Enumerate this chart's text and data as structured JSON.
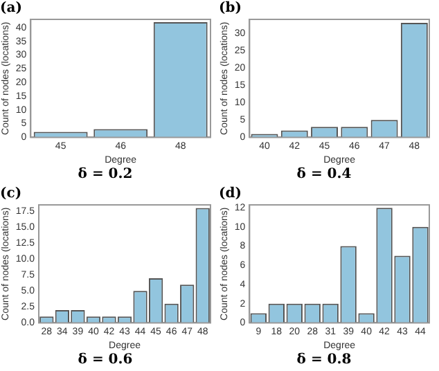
{
  "chart_data": [
    {
      "type": "bar",
      "title": "(a)",
      "subtitle": "δ = 0.2",
      "xlabel": "Degree",
      "ylabel": "Count of nodes (locations)",
      "categories": [
        "45",
        "46",
        "48"
      ],
      "values": [
        2,
        3,
        42
      ],
      "color": "#92c5de",
      "ylim": [
        0,
        43
      ],
      "yticks": [
        0,
        5,
        10,
        15,
        20,
        25,
        30,
        35,
        40
      ],
      "grid": false
    },
    {
      "type": "bar",
      "title": "(b)",
      "subtitle": "δ = 0.4",
      "xlabel": "Degree",
      "ylabel": "Count of nodes (locations)",
      "categories": [
        "40",
        "42",
        "45",
        "46",
        "47",
        "48"
      ],
      "values": [
        1,
        2,
        3,
        3,
        5,
        33
      ],
      "color": "#92c5de",
      "ylim": [
        0,
        34
      ],
      "yticks": [
        0,
        5,
        10,
        15,
        20,
        25,
        30
      ],
      "grid": false
    },
    {
      "type": "bar",
      "title": "(c)",
      "subtitle": "δ = 0.6",
      "xlabel": "Degree",
      "ylabel": "Count of nodes (locations)",
      "categories": [
        "28",
        "34",
        "39",
        "40",
        "42",
        "43",
        "44",
        "45",
        "46",
        "47",
        "48"
      ],
      "values": [
        1,
        2,
        2,
        1,
        1,
        1,
        5,
        7,
        3,
        6,
        18
      ],
      "color": "#92c5de",
      "ylim": [
        0,
        18.5
      ],
      "yticks": [
        {
          "value": 0,
          "label": "0.0"
        },
        {
          "value": 2.5,
          "label": "2.5"
        },
        {
          "value": 5,
          "label": "5.0"
        },
        {
          "value": 7.5,
          "label": "7.5"
        },
        {
          "value": 10,
          "label": "10.0"
        },
        {
          "value": 12.5,
          "label": "12.5"
        },
        {
          "value": 15,
          "label": "15.0"
        },
        {
          "value": 17.5,
          "label": "17.5"
        }
      ],
      "grid": false
    },
    {
      "type": "bar",
      "title": "(d)",
      "subtitle": "δ = 0.8",
      "xlabel": "Degree",
      "ylabel": "Count of nodes (locations)",
      "categories": [
        "9",
        "18",
        "20",
        "28",
        "31",
        "39",
        "40",
        "42",
        "43",
        "44"
      ],
      "values": [
        1,
        2,
        2,
        2,
        2,
        8,
        1,
        12,
        7,
        10
      ],
      "color": "#92c5de",
      "ylim": [
        0,
        12.3
      ],
      "yticks": [
        0,
        2,
        4,
        6,
        8,
        10,
        12
      ],
      "grid": false
    }
  ]
}
